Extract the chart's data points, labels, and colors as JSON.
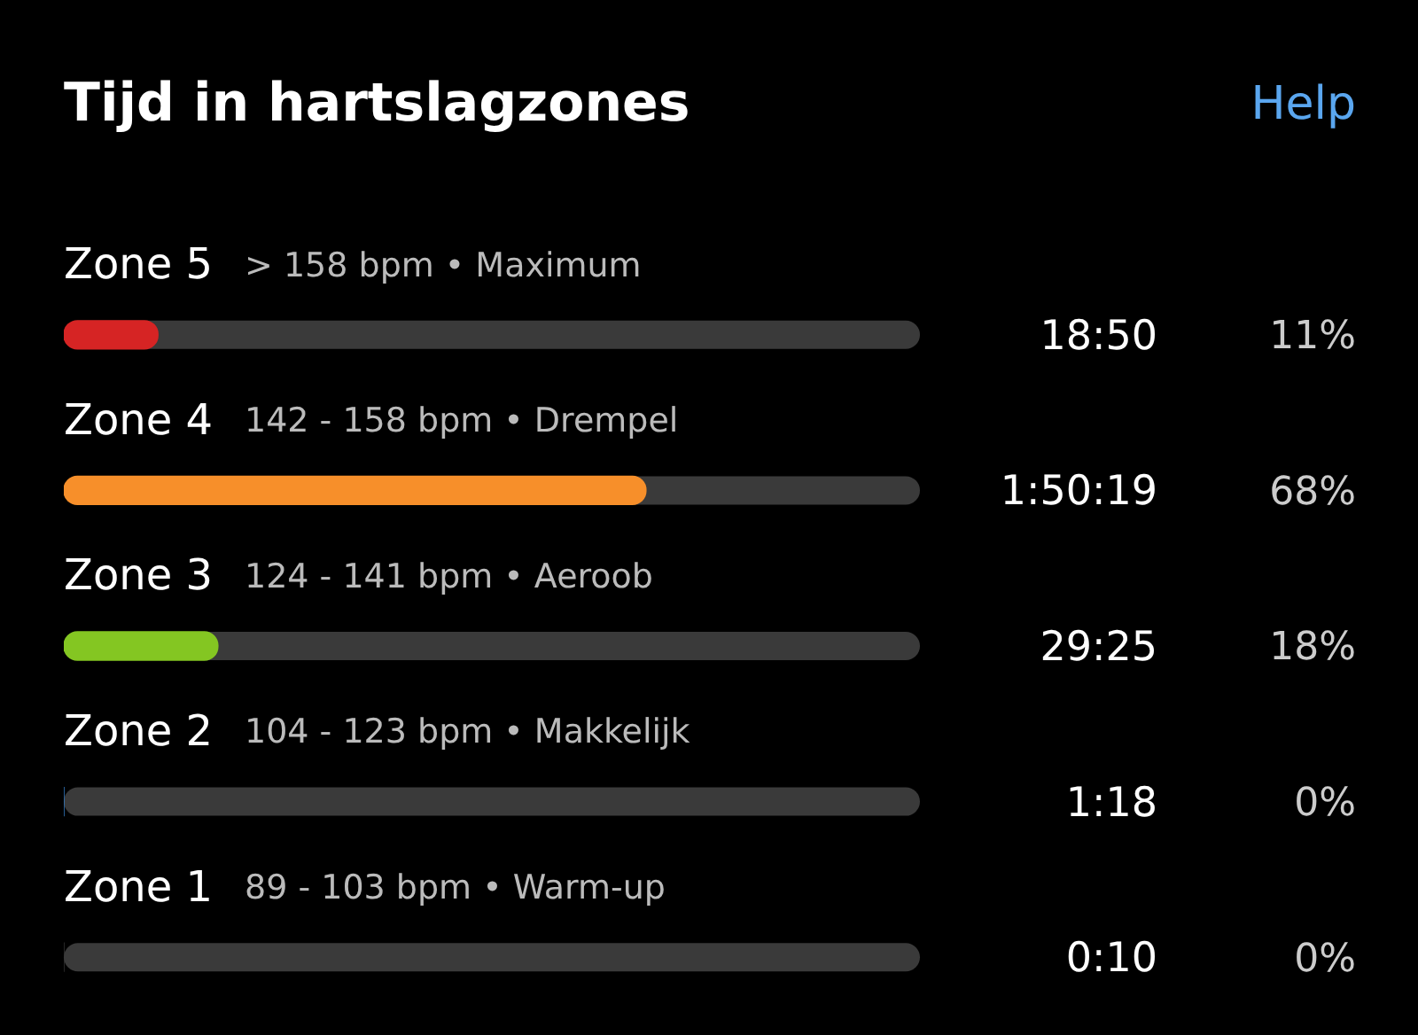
{
  "chart_data": {
    "type": "bar",
    "orientation": "horizontal",
    "title": "Tijd in hartslagzones",
    "categories": [
      "Zone 5",
      "Zone 4",
      "Zone 3",
      "Zone 2",
      "Zone 1"
    ],
    "values": [
      11,
      68,
      18,
      0,
      0
    ],
    "colors": [
      "#d62424",
      "#f78f2a",
      "#84c622",
      "#3b8de0",
      "#3a3a3a"
    ],
    "value_labels": [
      "11%",
      "68%",
      "18%",
      "0%",
      "0%"
    ],
    "xlim": [
      0,
      100
    ],
    "tick_labels": false,
    "legend": false,
    "annotations": [
      "Help",
      "> 158 bpm • Maximum",
      "142 - 158 bpm • Drempel",
      "124 - 141 bpm • Aeroob",
      "104 - 123 bpm • Makkelijk",
      "89 - 103 bpm • Warm-up",
      "18:50",
      "1:50:19",
      "29:25",
      "1:18",
      "0:10"
    ]
  }
}
